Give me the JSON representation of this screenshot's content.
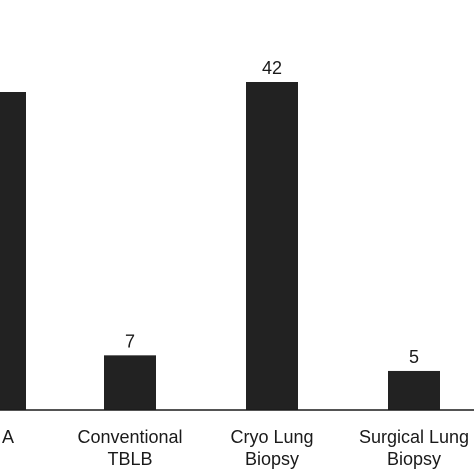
{
  "chart_data": {
    "type": "bar",
    "categories": [
      [
        "A"
      ],
      [
        "Conventional",
        "TBLB"
      ],
      [
        "Cryo Lung",
        "Biopsy"
      ],
      [
        "Surgical Lung",
        "Biopsy"
      ]
    ],
    "values": [
      null,
      7,
      42,
      5
    ],
    "value_labels": [
      "",
      "7",
      "42",
      "5"
    ],
    "bar_color": "#222222",
    "title": "",
    "xlabel": "",
    "ylabel": "",
    "grid": false
  }
}
